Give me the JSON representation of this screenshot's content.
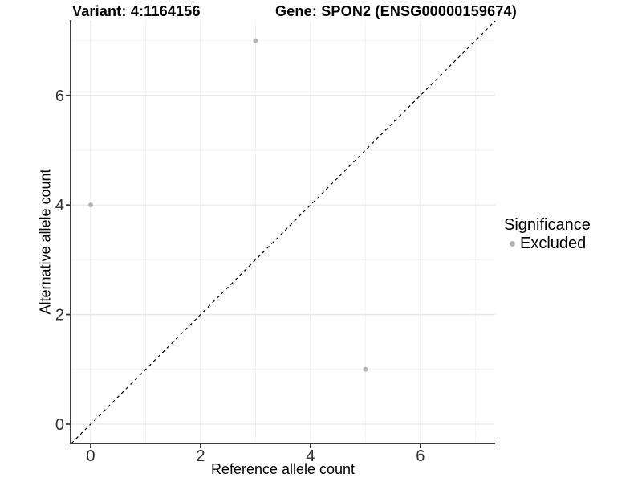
{
  "header": {
    "variant_title": "Variant: 4:1164156",
    "gene_title": "Gene: SPON2 (ENSG00000159674)"
  },
  "chart_data": {
    "type": "scatter",
    "title": "Variant: 4:1164156  |  Gene: SPON2 (ENSG00000159674)",
    "xlabel": "Reference allele count",
    "ylabel": "Alternative allele count",
    "xlim": [
      -0.365,
      7.36
    ],
    "ylim": [
      -0.352,
      7.375
    ],
    "x_ticks": [
      0,
      2,
      4,
      6
    ],
    "y_ticks": [
      0,
      2,
      4,
      6
    ],
    "x_minor": [
      1,
      3,
      5,
      7
    ],
    "y_minor": [
      1,
      3,
      5,
      7
    ],
    "grid": true,
    "series": [
      {
        "name": "Excluded",
        "color": "#b3b3b3",
        "points": [
          [
            0,
            4
          ],
          [
            3,
            7
          ],
          [
            5,
            1
          ]
        ]
      }
    ],
    "reference_line": {
      "kind": "identity",
      "equation": "y = x",
      "style": "dashed",
      "color": "#000000"
    },
    "legend": {
      "title": "Significance",
      "position": "right",
      "entries": [
        {
          "label": "Excluded",
          "color": "#b3b3b3"
        }
      ]
    },
    "colors": {
      "grid_major": "#e6e6e6",
      "grid_minor": "#f2f2f2",
      "axis_line": "#3c3c3c",
      "tick_mark": "#333333",
      "tick_label": "#303030",
      "background": "#ffffff"
    }
  }
}
